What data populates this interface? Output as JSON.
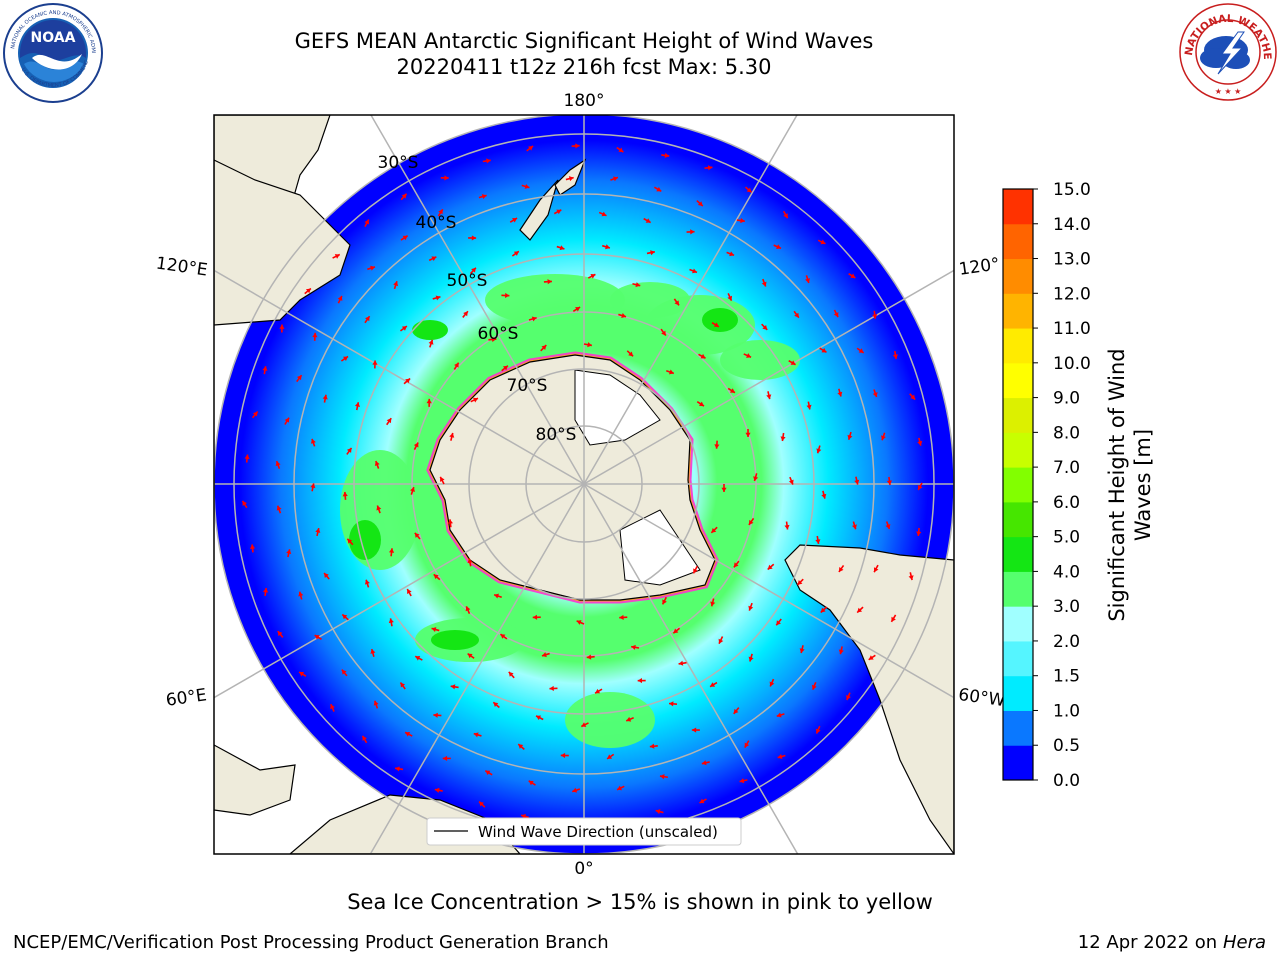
{
  "header": {
    "title_line1": "GEFS MEAN Antarctic Significant Height of Wind Waves",
    "title_line2": "20220411 t12z 216h fcst   Max: 5.30"
  },
  "logos": {
    "left": {
      "name": "noaa-logo",
      "text": "NOAA"
    },
    "right": {
      "name": "national-weather-service-logo",
      "text": "NATIONAL WEATHER SERVICE"
    }
  },
  "map": {
    "projection": "south-polar-stereographic",
    "longitude_labels": {
      "top": "180°",
      "bottom": "0°",
      "left_upper": "120°E",
      "left_lower": "60°E",
      "right_upper": "120°",
      "right_lower": "60°W"
    },
    "latitude_labels": [
      "30°S",
      "40°S",
      "50°S",
      "60°S",
      "70°S",
      "80°S"
    ],
    "legend_label": "Wind Wave Direction (unscaled)",
    "colors": {
      "land": "#eeebdb",
      "ice_free_land": "#ffffff",
      "arrow": "#ff0000",
      "grid": "#b4b4b4",
      "sea_ice": "#ff33cc"
    }
  },
  "colorbar": {
    "label_line1": "Significant Height of Wind",
    "label_line2": "Waves [m]",
    "ticks": [
      "15.0",
      "14.0",
      "13.0",
      "12.0",
      "11.0",
      "10.0",
      "9.0",
      "8.0",
      "7.0",
      "6.0",
      "5.0",
      "4.0",
      "3.0",
      "2.0",
      "1.5",
      "1.0",
      "0.5",
      "0.0"
    ],
    "colors_bottom_to_top": [
      "#0000ff",
      "#0a78ff",
      "#00ebff",
      "#55f5ff",
      "#a0ffff",
      "#55ff6e",
      "#14e614",
      "#46e600",
      "#82ff00",
      "#c8ff00",
      "#dcf000",
      "#ffff00",
      "#ffeb00",
      "#ffb400",
      "#ff8c00",
      "#ff6400",
      "#ff3200"
    ]
  },
  "footer": {
    "note": "Sea Ice Concentration > 15% is shown in pink to yellow",
    "left": "NCEP/EMC/Verification Post Processing Product Generation Branch",
    "right_prefix": "12 Apr 2022 on ",
    "right_italic": "Hera"
  }
}
